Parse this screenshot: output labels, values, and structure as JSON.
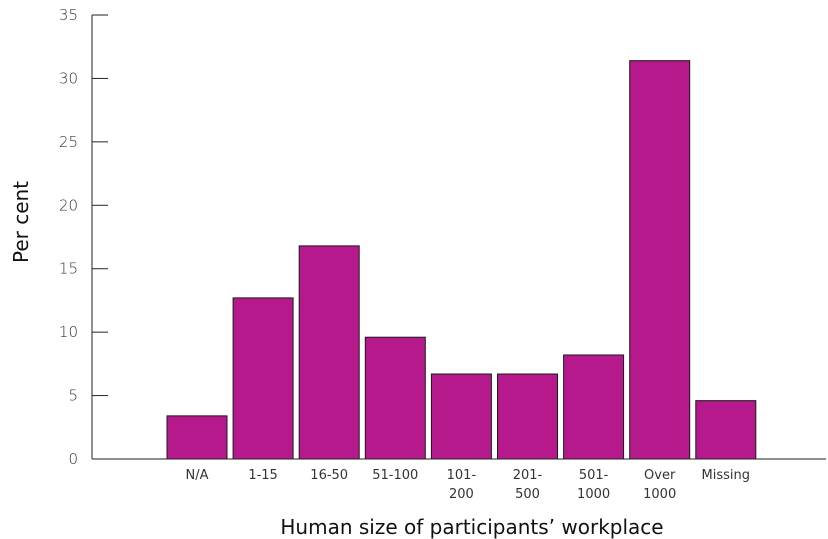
{
  "chart_data": {
    "type": "bar",
    "categories": [
      [
        "N/A"
      ],
      [
        "1-15"
      ],
      [
        "16-50"
      ],
      [
        "51-100"
      ],
      [
        "101-",
        "200"
      ],
      [
        "201-",
        "500"
      ],
      [
        "501-",
        "1000"
      ],
      [
        "Over",
        "1000"
      ],
      [
        "Missing"
      ]
    ],
    "values": [
      3.4,
      12.7,
      16.8,
      9.6,
      6.7,
      6.7,
      8.2,
      31.4,
      4.6
    ],
    "xlabel": "Human size of participants’ workplace",
    "ylabel": "Per cent",
    "ylim": [
      0,
      35
    ],
    "yticks": [
      0,
      5,
      10,
      15,
      20,
      25,
      30,
      35
    ],
    "grid": false,
    "bar_color": "#b5198c",
    "bar_edge_color": "#1a1a1a"
  }
}
